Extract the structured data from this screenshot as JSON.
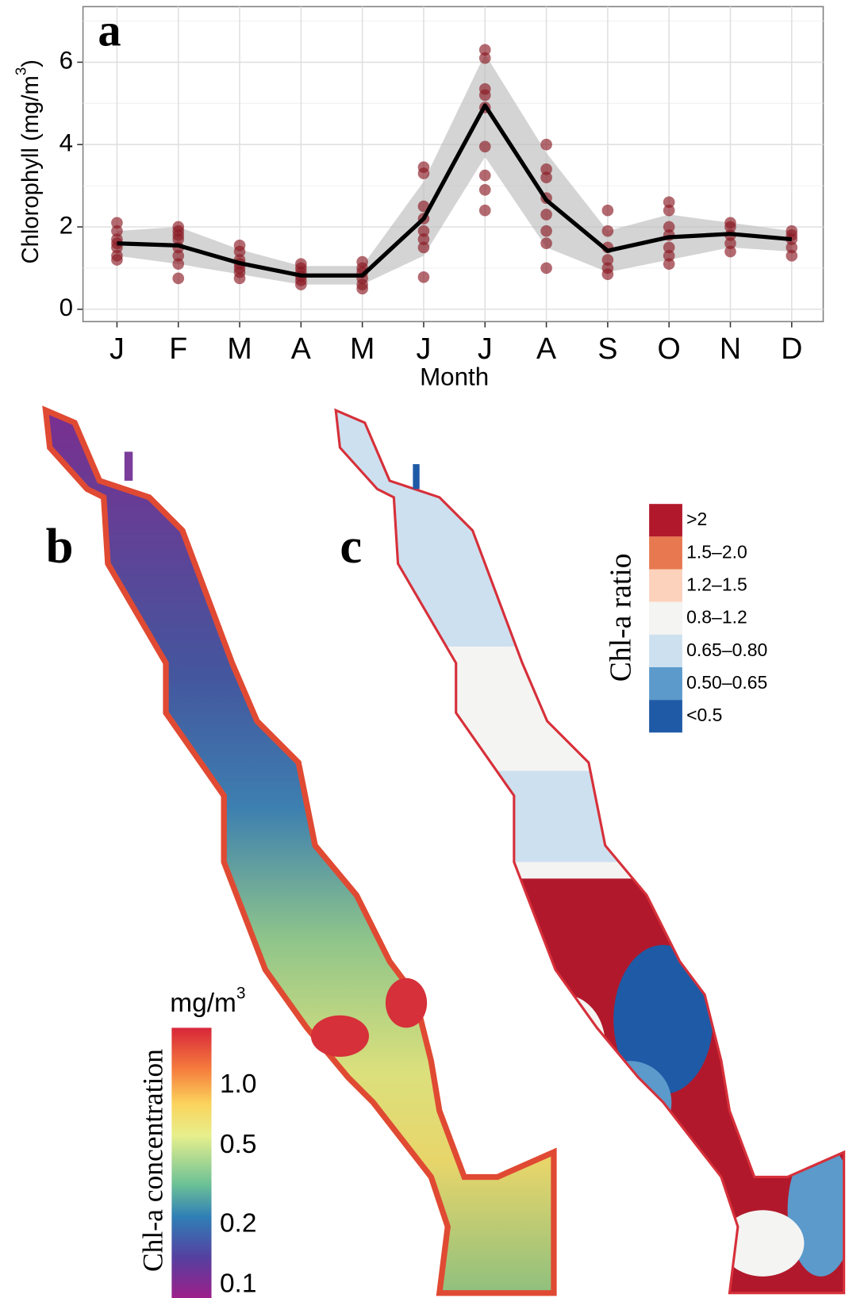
{
  "chart_data": [
    {
      "type": "line",
      "panel_label": "a",
      "ylabel": [
        "Chlorophyll (mg/m",
        "3",
        ")"
      ],
      "xlabel": "Month",
      "categories": [
        "J",
        "F",
        "M",
        "A",
        "M",
        "J",
        "J",
        "A",
        "S",
        "O",
        "N",
        "D"
      ],
      "values": [
        1.6,
        1.55,
        1.12,
        0.82,
        0.82,
        2.2,
        4.95,
        2.65,
        1.42,
        1.75,
        1.83,
        1.7
      ],
      "ribbon": {
        "lower": [
          1.3,
          1.1,
          0.85,
          0.6,
          0.6,
          1.3,
          3.7,
          1.5,
          0.9,
          1.2,
          1.5,
          1.4
        ],
        "upper": [
          1.9,
          2.0,
          1.45,
          1.05,
          1.05,
          3.1,
          6.2,
          3.8,
          1.9,
          2.3,
          2.1,
          1.9
        ]
      },
      "points": [
        [
          1.2,
          1.3,
          1.5,
          1.6,
          1.7,
          1.9,
          2.1
        ],
        [
          0.75,
          1.1,
          1.3,
          1.5,
          1.7,
          1.8,
          1.9,
          2.0
        ],
        [
          0.75,
          0.9,
          1.0,
          1.1,
          1.2,
          1.4,
          1.55
        ],
        [
          0.6,
          0.7,
          0.8,
          0.9,
          1.0,
          1.1
        ],
        [
          0.5,
          0.6,
          0.75,
          0.9,
          1.0,
          1.15
        ],
        [
          0.78,
          1.5,
          1.7,
          1.9,
          2.2,
          2.5,
          3.3,
          3.45
        ],
        [
          2.4,
          2.9,
          3.25,
          3.95,
          4.9,
          5.2,
          5.35,
          6.1,
          6.3
        ],
        [
          1.0,
          1.6,
          1.9,
          2.3,
          2.7,
          3.2,
          3.4,
          4.0
        ],
        [
          0.85,
          1.0,
          1.2,
          1.5,
          1.9,
          2.4
        ],
        [
          1.1,
          1.3,
          1.5,
          1.8,
          2.0,
          2.4,
          2.6
        ],
        [
          1.4,
          1.6,
          1.8,
          2.0,
          2.1
        ],
        [
          1.3,
          1.5,
          1.7,
          1.8,
          1.9
        ]
      ],
      "color": "#000000",
      "point_color": "#8b1a24",
      "ribbon_color": "#bdbdbd",
      "ylim": [
        -0.3,
        7.35
      ],
      "yticks": [
        0,
        2,
        4,
        6
      ],
      "y_minor_ticks": [
        1,
        3,
        5,
        7
      ],
      "grid": true
    },
    {
      "type": "map",
      "panel_label": "b",
      "legend_title": [
        "mg/m",
        "3"
      ],
      "legend_label": "Chl-a concentration",
      "log_scale": true,
      "lim": [
        0.086,
        1.95
      ],
      "ticks": [
        {
          "value": 1,
          "label": "1.0"
        },
        0.5,
        0.2,
        0.1
      ]
    },
    {
      "type": "map",
      "panel_label": "c",
      "legend_title": "Chl-a ratio",
      "categories": [
        ">2",
        "1.5–2.0",
        "1.2–1.5",
        "0.8–1.2",
        "0.65–0.80",
        "0.50–0.65",
        "<0.5"
      ],
      "colors": [
        "#b2182b",
        "#e7784f",
        "#fcd2bd",
        "#f4f4f2",
        "#cde0ef",
        "#5b9acb",
        "#1f5aa6"
      ]
    }
  ]
}
